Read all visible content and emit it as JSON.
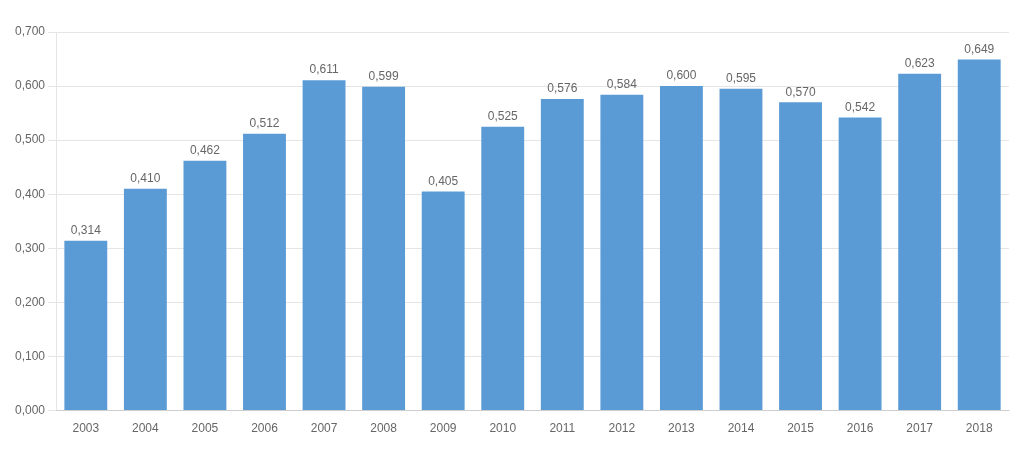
{
  "chart_data": {
    "type": "bar",
    "categories": [
      "2003",
      "2004",
      "2005",
      "2006",
      "2007",
      "2008",
      "2009",
      "2010",
      "2011",
      "2012",
      "2013",
      "2014",
      "2015",
      "2016",
      "2017",
      "2018"
    ],
    "values": [
      0.314,
      0.41,
      0.462,
      0.512,
      0.611,
      0.599,
      0.405,
      0.525,
      0.576,
      0.584,
      0.6,
      0.595,
      0.57,
      0.542,
      0.623,
      0.649
    ],
    "value_labels": [
      "0,314",
      "0,410",
      "0,462",
      "0,512",
      "0,611",
      "0,599",
      "0,405",
      "0,525",
      "0,576",
      "0,584",
      "0,600",
      "0,595",
      "0,570",
      "0,542",
      "0,623",
      "0,649"
    ],
    "data_labels": true,
    "color": "#5B9BD5",
    "ylim": [
      0.0,
      0.7
    ],
    "yticks": [
      {
        "value": 0.0,
        "label": "0,000"
      },
      {
        "value": 0.1,
        "label": "0,100"
      },
      {
        "value": 0.2,
        "label": "0,200"
      },
      {
        "value": 0.3,
        "label": "0,300"
      },
      {
        "value": 0.4,
        "label": "0,400"
      },
      {
        "value": 0.5,
        "label": "0,500"
      },
      {
        "value": 0.6,
        "label": "0,600"
      },
      {
        "value": 0.7,
        "label": "0,700"
      }
    ],
    "grid": true
  }
}
